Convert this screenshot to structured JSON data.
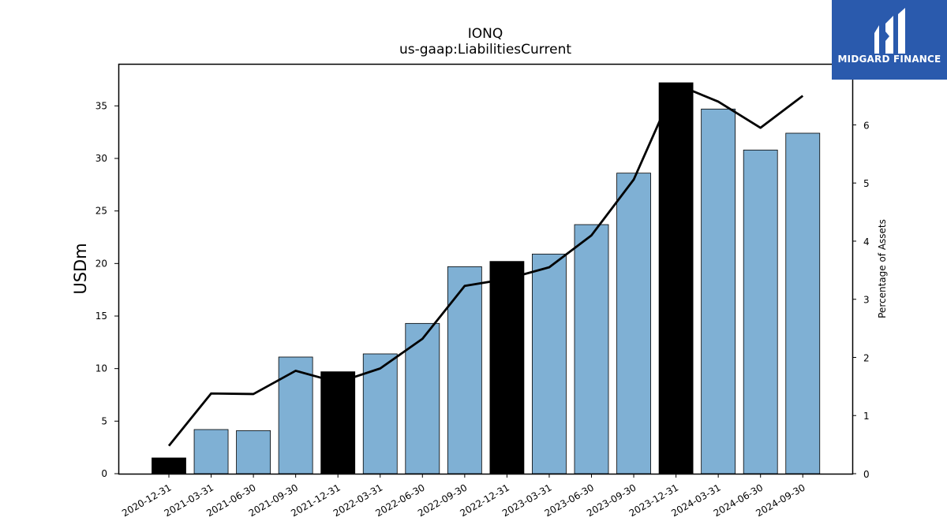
{
  "chart_data": {
    "type": "bar",
    "title": "IONQ",
    "subtitle": "us-gaap:LiabilitiesCurrent",
    "ylabel": "USDm",
    "y2label": "Percentage of Assets",
    "ylim": [
      0,
      39
    ],
    "y2lim": [
      0,
      7.05
    ],
    "yticks": [
      0,
      5,
      10,
      15,
      20,
      25,
      30,
      35
    ],
    "y2ticks": [
      0,
      1,
      2,
      3,
      4,
      5,
      6
    ],
    "categories": [
      "2020-12-31",
      "2021-03-31",
      "2021-06-30",
      "2021-09-30",
      "2021-12-31",
      "2022-03-31",
      "2022-06-30",
      "2022-09-30",
      "2022-12-31",
      "2023-03-31",
      "2023-06-30",
      "2023-09-30",
      "2023-12-31",
      "2024-03-31",
      "2024-06-30",
      "2024-09-30"
    ],
    "series": [
      {
        "type": "bar",
        "axis": "left",
        "values": [
          1.5,
          4.2,
          4.1,
          11.1,
          9.7,
          11.4,
          14.3,
          19.7,
          20.2,
          20.9,
          23.7,
          28.6,
          37.2,
          34.7,
          30.8,
          32.4
        ],
        "highlight": [
          true,
          false,
          false,
          false,
          true,
          false,
          false,
          false,
          true,
          false,
          false,
          false,
          true,
          false,
          false,
          false
        ]
      },
      {
        "type": "line",
        "axis": "right",
        "values": [
          0.48,
          1.38,
          1.37,
          1.77,
          1.57,
          1.81,
          2.32,
          3.23,
          3.35,
          3.55,
          4.1,
          5.06,
          6.7,
          6.4,
          5.95,
          6.5
        ]
      }
    ],
    "colors": {
      "bar": "#7fb0d4",
      "bar_highlight": "#000000",
      "line": "#000000"
    }
  },
  "logo": {
    "text": "MIDGARD FINANCE",
    "background": "#2a5aad"
  }
}
